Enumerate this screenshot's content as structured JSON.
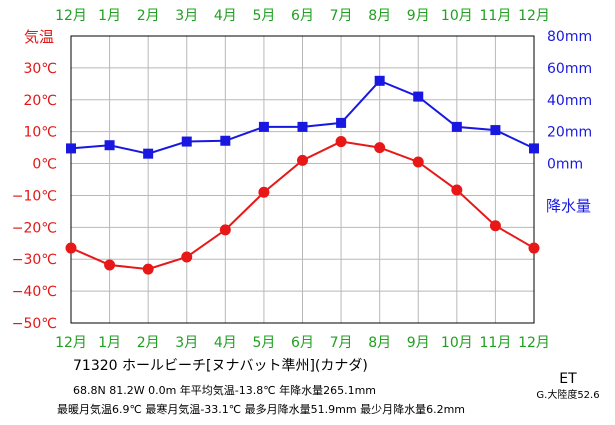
{
  "chart_data": {
    "type": "line",
    "months": [
      "12月",
      "1月",
      "2月",
      "3月",
      "4月",
      "5月",
      "6月",
      "7月",
      "8月",
      "9月",
      "10月",
      "11月",
      "12月"
    ],
    "y_left": {
      "label": "気温",
      "unit": "℃",
      "ticks": [
        "30℃",
        "20℃",
        "10℃",
        "0℃",
        "−10℃",
        "−20℃",
        "−30℃",
        "−40℃",
        "−50℃"
      ],
      "ylim": [
        -50,
        40
      ]
    },
    "y_right": {
      "label": "降水量",
      "unit": "mm",
      "ticks": [
        "80mm",
        "60mm",
        "40mm",
        "20mm",
        "0mm"
      ],
      "ylim": [
        -100,
        80
      ]
    },
    "series": [
      {
        "name": "気温",
        "color": "#e81818",
        "marker": "circle",
        "axis": "left",
        "values": [
          -26.5,
          -31.8,
          -33.1,
          -29.3,
          -20.8,
          -9.0,
          1.0,
          6.9,
          5.0,
          0.5,
          -8.3,
          -19.5,
          -26.5
        ]
      },
      {
        "name": "降水量",
        "color": "#1818e0",
        "marker": "square",
        "axis": "right",
        "values": [
          9.5,
          11.5,
          6.2,
          13.8,
          14.3,
          23.0,
          23.0,
          25.5,
          51.9,
          42.0,
          23.0,
          21.0,
          9.5
        ]
      }
    ],
    "grid": true
  },
  "info": {
    "title": "71320 ホールビーチ[ヌナバット準州](カナダ)",
    "line1": "68.8N  81.2W  0.0m  年平均気温-13.8℃  年降水量265.1mm",
    "line2": "最暖月気温6.9℃ 最寒月気温-33.1℃ 最多月降水量51.9mm 最少月降水量6.2mm",
    "climate": "ET",
    "climate_sub": "G.大陸度52.6"
  }
}
